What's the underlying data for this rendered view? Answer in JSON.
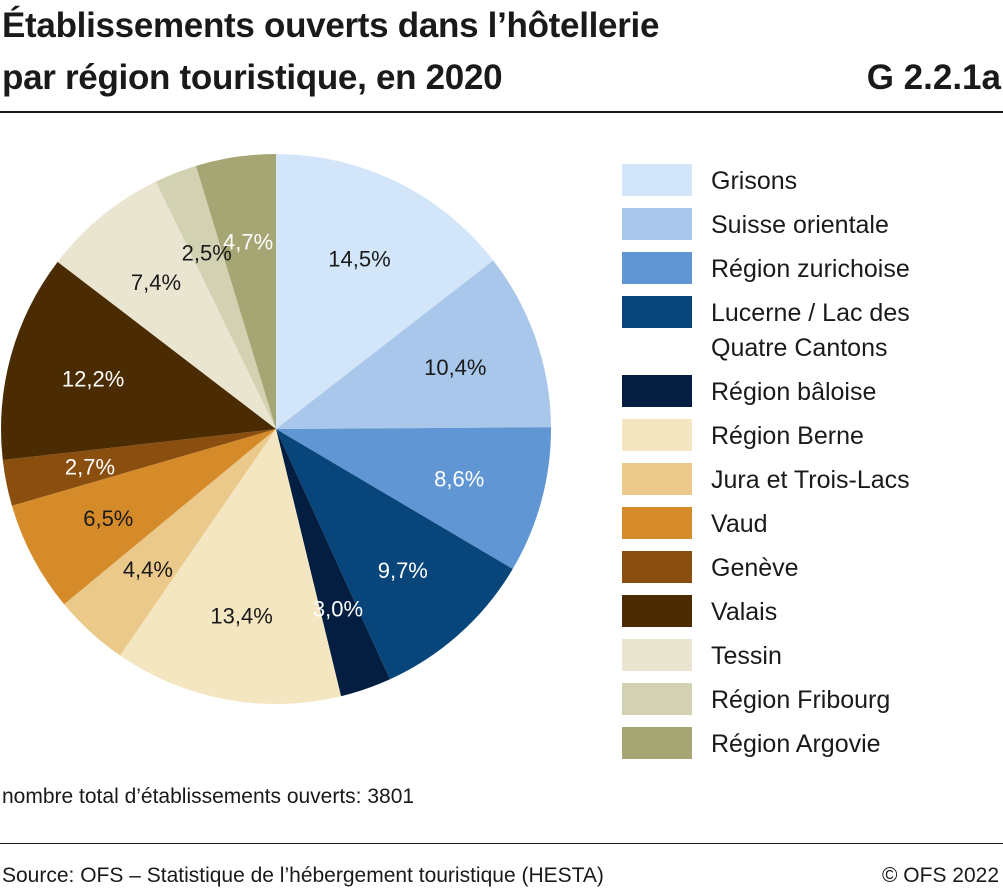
{
  "header": {
    "title_line1": "Établissements ouverts dans l’hôtellerie",
    "title_line2": "par région touristique, en 2020",
    "code": "G 2.2.1a"
  },
  "chart_data": {
    "type": "pie",
    "unit": "%",
    "slices": [
      {
        "label": "Grisons",
        "value": 14.5,
        "display": "14,5%",
        "color": "#d2e5f9",
        "text_color": "#1a1a1a"
      },
      {
        "label": "Suisse orientale",
        "value": 10.4,
        "display": "10,4%",
        "color": "#a9c7ea",
        "text_color": "#1a1a1a"
      },
      {
        "label": "Région zurichoise",
        "value": 8.6,
        "display": "8,6%",
        "color": "#6096d3",
        "text_color": "#ffffff"
      },
      {
        "label": "Lucerne / Lac des\nQuatre Cantons",
        "value": 9.7,
        "display": "9,7%",
        "color": "#08457a",
        "text_color": "#ffffff"
      },
      {
        "label": "Région bâloise",
        "value": 3.0,
        "display": "3,0%",
        "color": "#041e42",
        "text_color": "#ffffff"
      },
      {
        "label": "Région Berne",
        "value": 13.4,
        "display": "13,4%",
        "color": "#f4e6c1",
        "text_color": "#1a1a1a"
      },
      {
        "label": "Jura et Trois-Lacs",
        "value": 4.4,
        "display": "4,4%",
        "color": "#eac98a",
        "text_color": "#1a1a1a"
      },
      {
        "label": "Vaud",
        "value": 6.5,
        "display": "6,5%",
        "color": "#d68b2a",
        "text_color": "#1a1a1a"
      },
      {
        "label": "Genève",
        "value": 2.7,
        "display": "2,7%",
        "color": "#8a4e0e",
        "text_color": "#ffffff"
      },
      {
        "label": "Valais",
        "value": 12.2,
        "display": "12,2%",
        "color": "#4a2b02",
        "text_color": "#ffffff"
      },
      {
        "label": "Tessin",
        "value": 7.4,
        "display": "7,4%",
        "color": "#e9e5d0",
        "text_color": "#1a1a1a"
      },
      {
        "label": "Région Fribourg",
        "value": 2.5,
        "display": "2,5%",
        "color": "#d2d2b3",
        "text_color": "#1a1a1a"
      },
      {
        "label": "Région Argovie",
        "value": 4.7,
        "display": "4,7%",
        "color": "#a5a673",
        "text_color": "#ffffff"
      }
    ]
  },
  "footer": {
    "total_note": "nombre total d’établissements ouverts: 3801",
    "source": "Source: OFS – Statistique de l’hébergement touristique (HESTA)",
    "copyright": "© OFS 2022"
  }
}
